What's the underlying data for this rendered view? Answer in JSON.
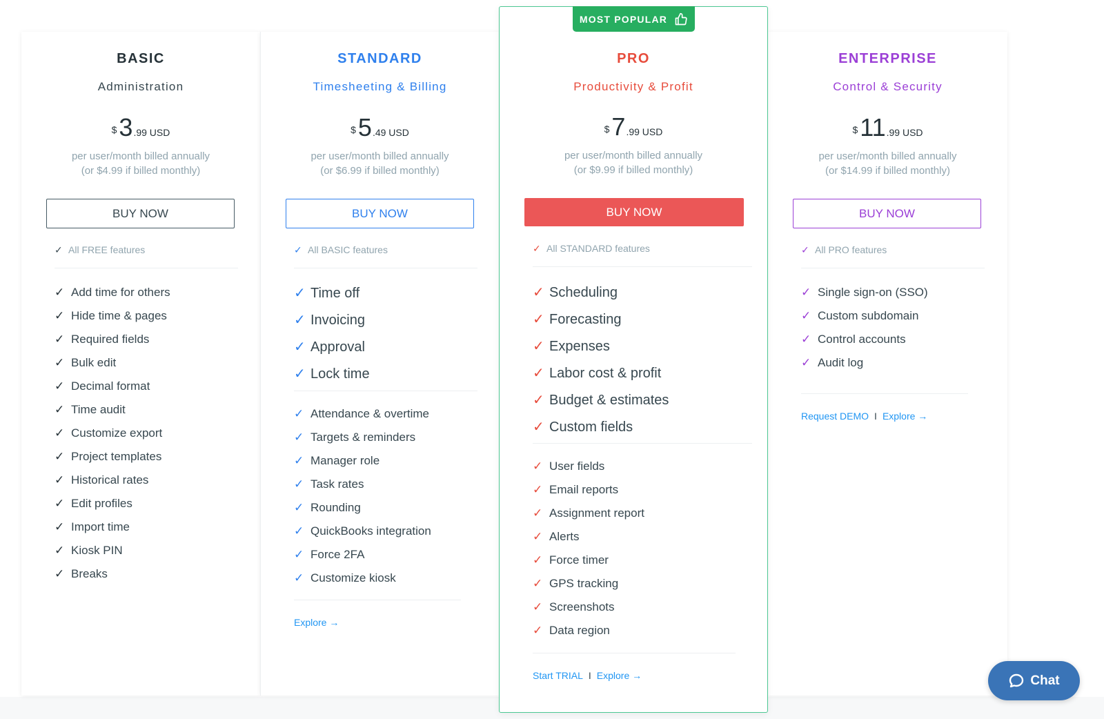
{
  "basic": {
    "name": "BASIC",
    "subtitle": "Administration",
    "currency": "$",
    "price_int": "3",
    "price_dec": ".99 USD",
    "billing_line1": "per user/month billed annually",
    "billing_line2": "(or $4.99 if billed monthly)",
    "buy_label": "BUY NOW",
    "features_head": "All FREE features",
    "features": [
      "Add time for others",
      "Hide time & pages",
      "Required fields",
      "Bulk edit",
      "Decimal format",
      "Time audit",
      "Customize export",
      "Project templates",
      "Historical rates",
      "Edit profiles",
      "Import time",
      "Kiosk PIN",
      "Breaks"
    ],
    "color": "#263238"
  },
  "standard": {
    "name": "STANDARD",
    "subtitle": "Timesheeting & Billing",
    "currency": "$",
    "price_int": "5",
    "price_dec": ".49 USD",
    "billing_line1": "per user/month billed annually",
    "billing_line2": "(or $6.99 if billed monthly)",
    "buy_label": "BUY NOW",
    "features_head": "All BASIC features",
    "features_main": [
      "Time off",
      "Invoicing",
      "Approval",
      "Lock time"
    ],
    "features": [
      "Attendance & overtime",
      "Targets & reminders",
      "Manager role",
      "Task rates",
      "Rounding",
      "QuickBooks integration",
      "Force 2FA",
      "Customize kiosk"
    ],
    "explore_label": "Explore →",
    "color": "#2f80ed"
  },
  "pro": {
    "badge": "MOST POPULAR",
    "name": "PRO",
    "subtitle": "Productivity & Profit",
    "currency": "$",
    "price_int": "7",
    "price_dec": ".99 USD",
    "billing_line1": "per user/month billed annually",
    "billing_line2": "(or $9.99 if billed monthly)",
    "buy_label": "BUY NOW",
    "features_head": "All STANDARD features",
    "features_main": [
      "Scheduling",
      "Forecasting",
      "Expenses",
      "Labor cost & profit",
      "Budget & estimates",
      "Custom fields"
    ],
    "features": [
      "User fields",
      "Email reports",
      "Assignment report",
      "Alerts",
      "Force timer",
      "GPS tracking",
      "Screenshots",
      "Data region"
    ],
    "trial_label": "Start TRIAL",
    "separator": "I",
    "explore_label": "Explore →",
    "color": "#e74c3c"
  },
  "enterprise": {
    "name": "ENTERPRISE",
    "subtitle": "Control & Security",
    "currency": "$",
    "price_int": "11",
    "price_dec": ".99 USD",
    "billing_line1": "per user/month billed annually",
    "billing_line2": "(or $14.99 if billed monthly)",
    "buy_label": "BUY NOW",
    "features_head": "All PRO features",
    "features": [
      "Single sign-on (SSO)",
      "Custom subdomain",
      "Control accounts",
      "Audit log"
    ],
    "demo_label": "Request DEMO",
    "separator": "I",
    "explore_label": "Explore →",
    "color": "#9b3fd6"
  },
  "chat": {
    "label": "Chat",
    "icon": "chat-bubble-icon"
  },
  "icons": {
    "check": "✓",
    "badge": "thumbs-up-icon"
  }
}
